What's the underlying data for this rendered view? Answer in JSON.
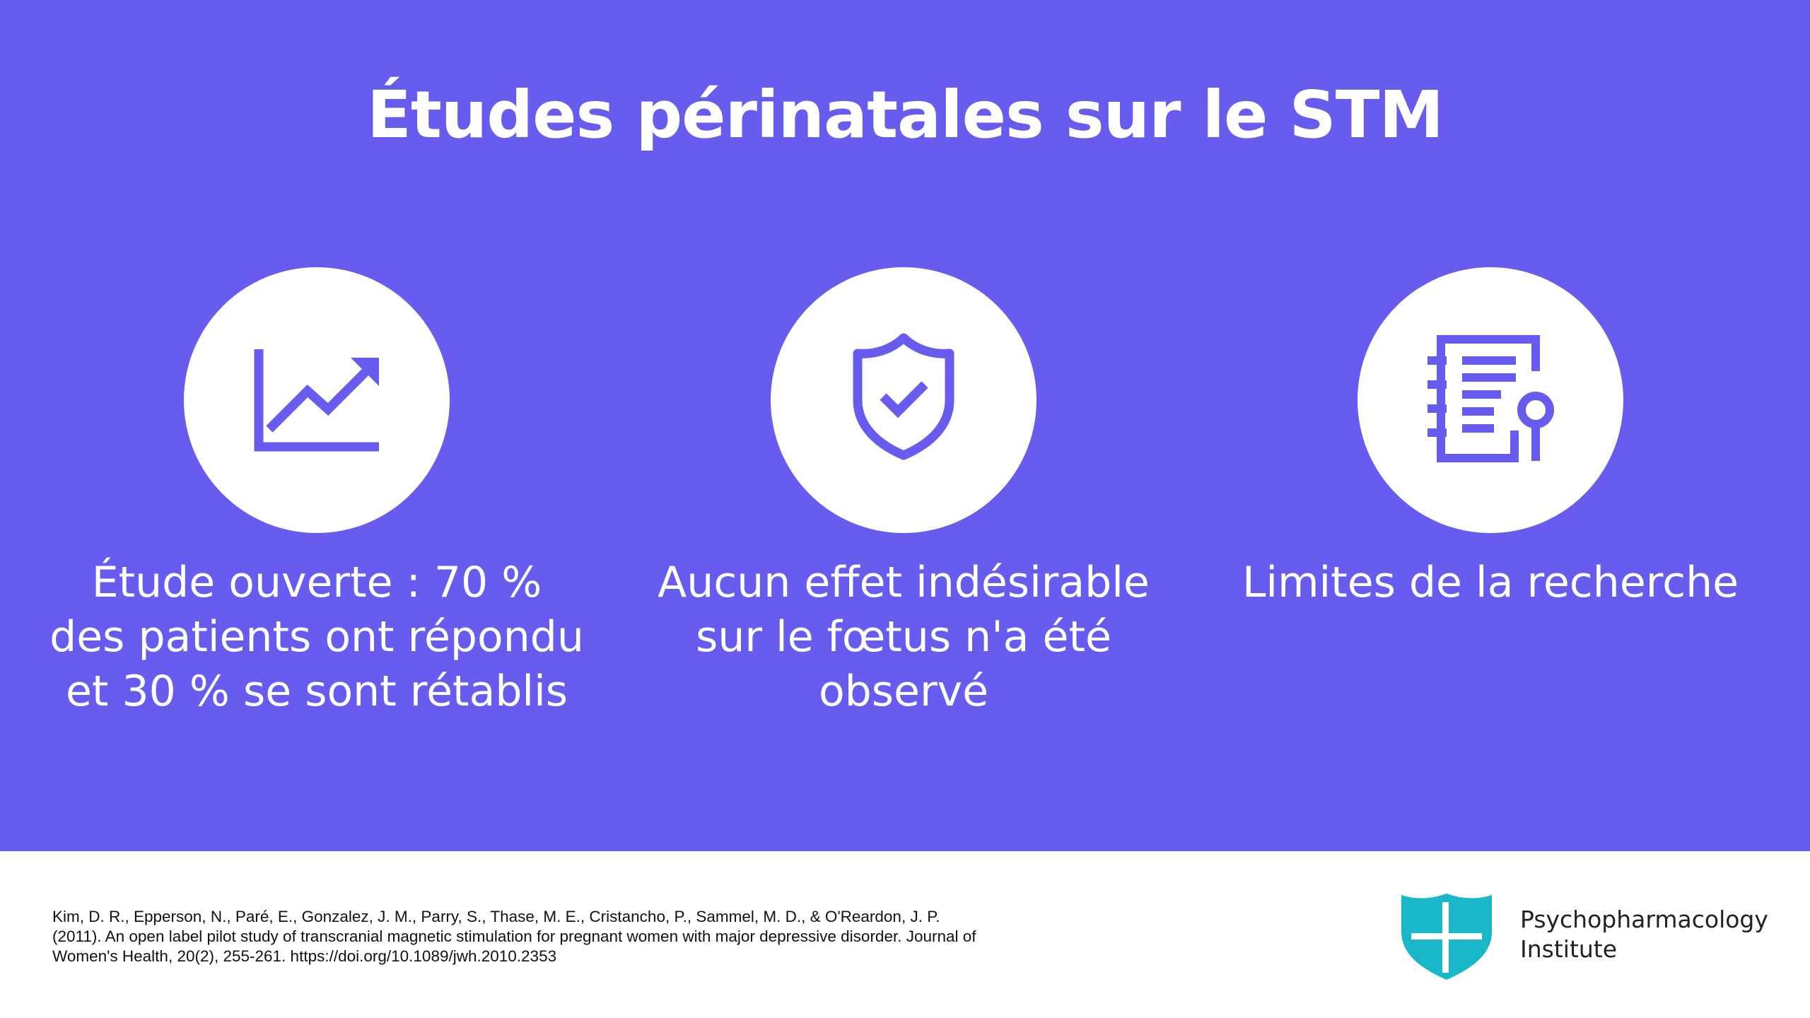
{
  "slide": {
    "title": "Études périnatales sur le STM",
    "colors": {
      "background": "#675CED",
      "icon": "#675CED",
      "text": "#FFFFFF",
      "logo": "#1AB7C9"
    },
    "items": [
      {
        "icon": "trend-up-chart-icon",
        "text": "Étude ouverte : 70 % des patients ont répondu et 30 % se sont rétablis"
      },
      {
        "icon": "shield-check-icon",
        "text": "Aucun effet indésirable sur le fœtus n'a été observé"
      },
      {
        "icon": "notebook-search-icon",
        "text": "Limites de la recherche"
      }
    ]
  },
  "footer": {
    "citation": "Kim, D. R., Epperson, N., Paré, E., Gonzalez, J. M., Parry, S., Thase, M. E., Cristancho, P., Sammel, M. D., & O'Reardon, J. P. (2011). An open label pilot study of transcranial magnetic stimulation for pregnant women with major depressive disorder. Journal of Women's Health, 20(2), 255-261. https://doi.org/10.1089/jwh.2010.2353",
    "logo": {
      "icon": "shield-cross-logo-icon",
      "line1": "Psychopharmacology",
      "line2": "Institute"
    }
  }
}
